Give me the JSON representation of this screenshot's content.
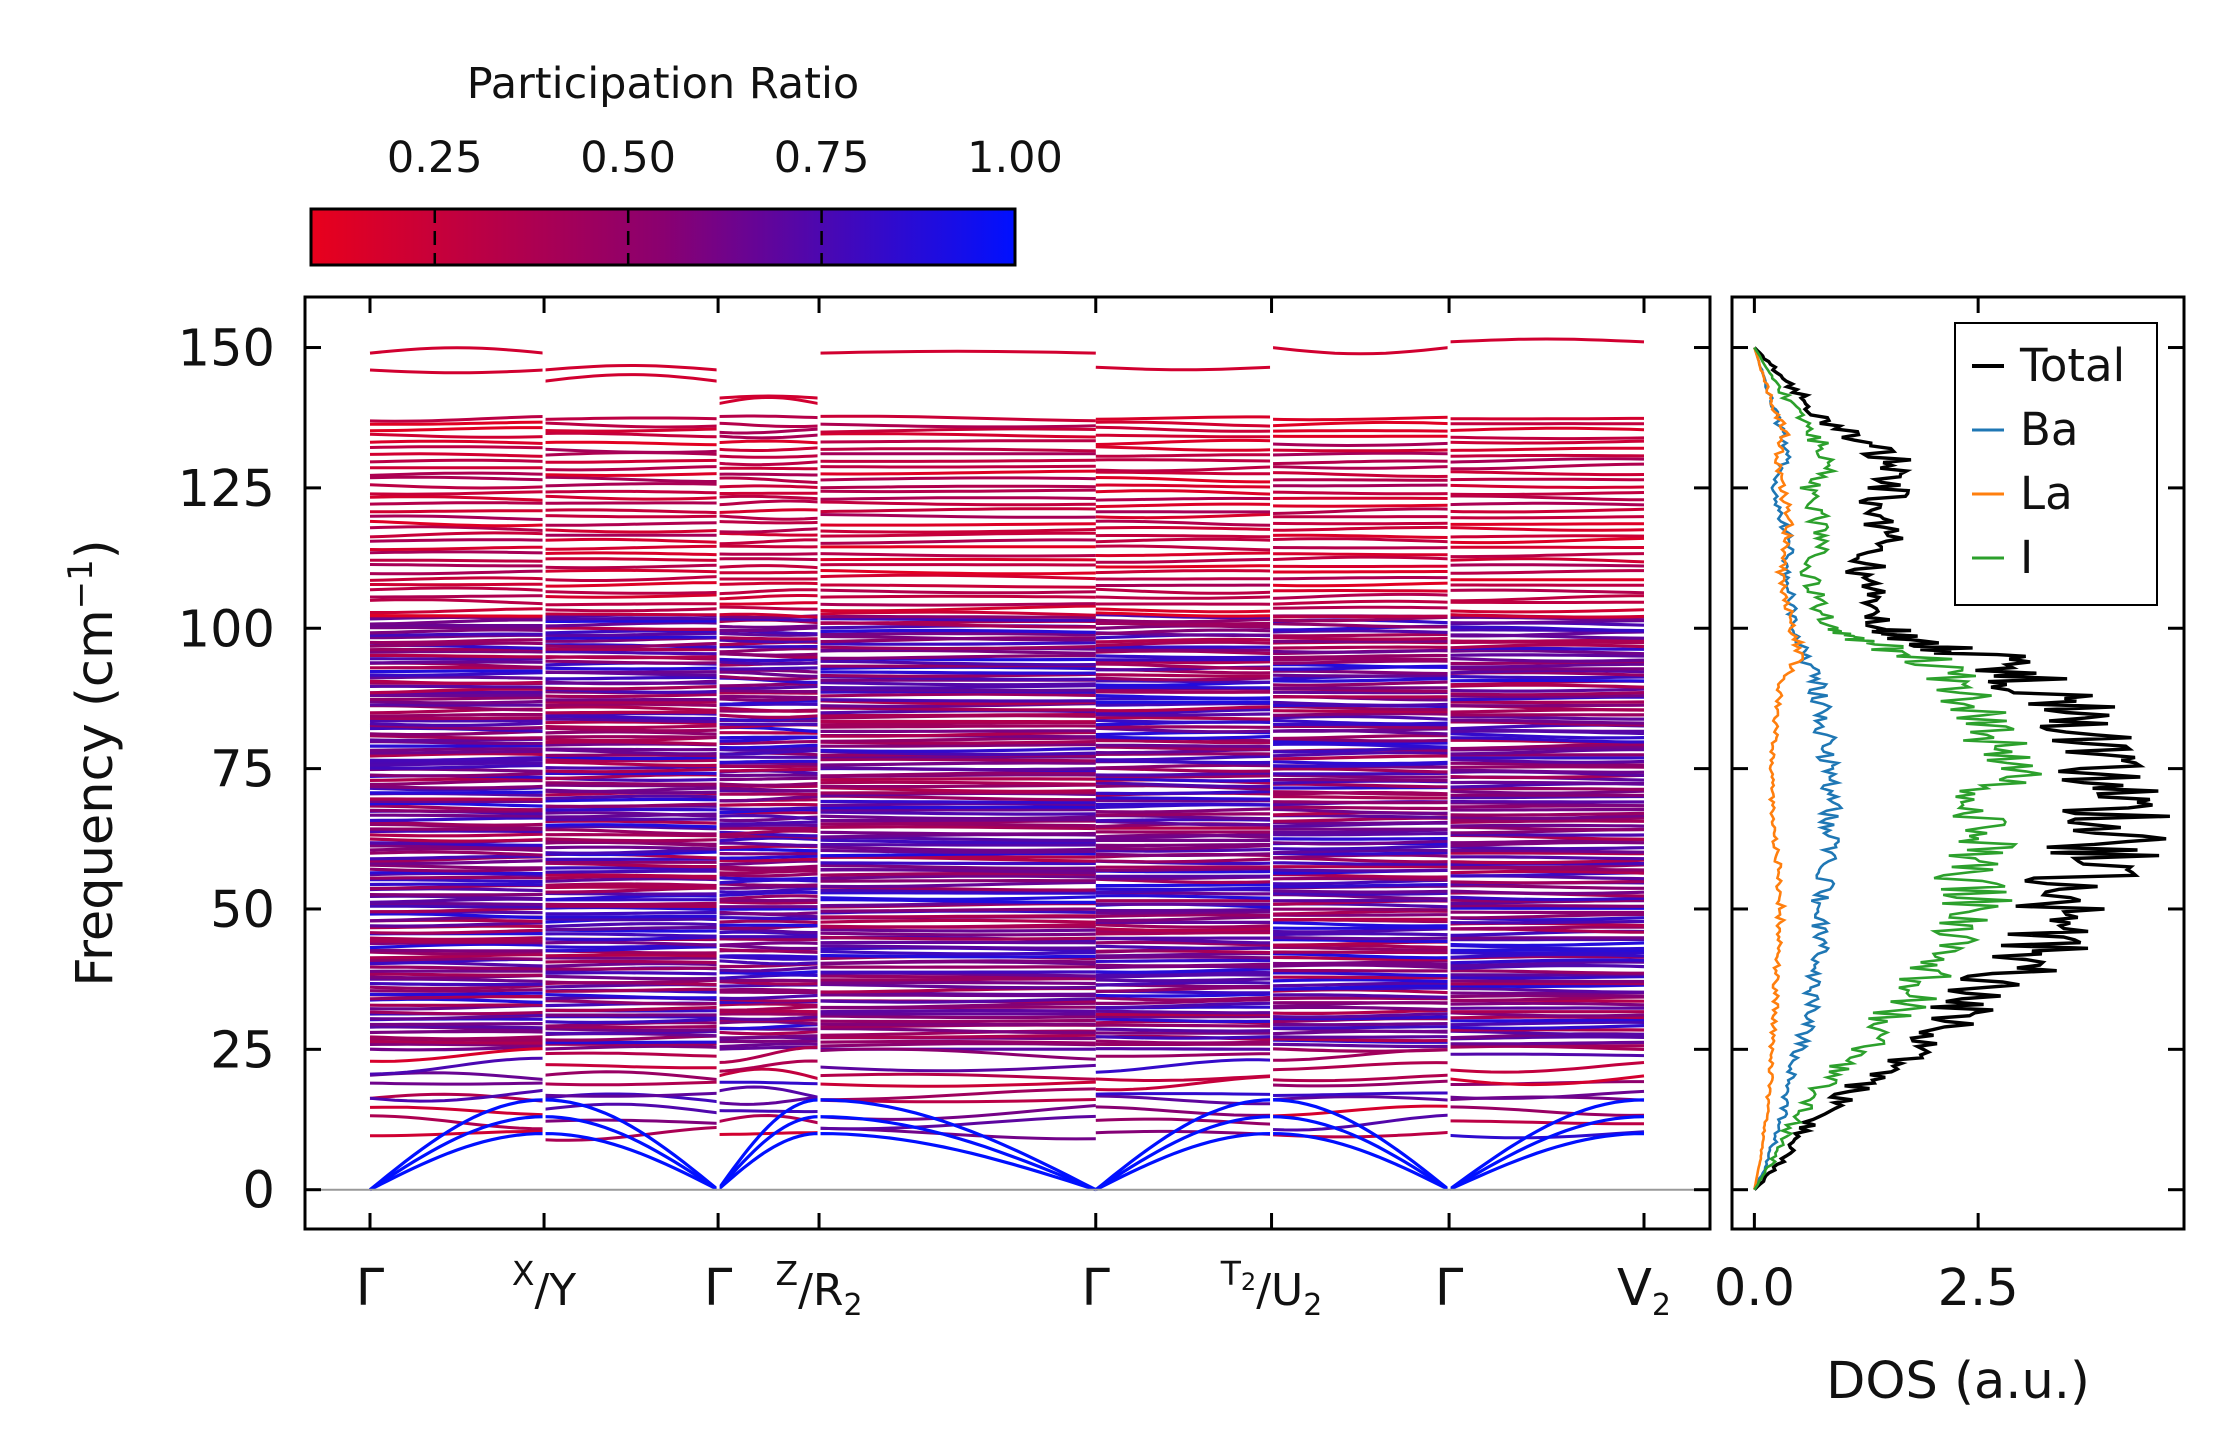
{
  "colorbar": {
    "title": "Participation Ratio",
    "ticks": [
      0.25,
      0.5,
      0.75,
      1.0
    ],
    "tick_labels": [
      "0.25",
      "0.50",
      "0.75",
      "1.00"
    ],
    "range": [
      0.09,
      1.0
    ],
    "color_low": "#e8001c",
    "color_mid": "#8a0070",
    "color_high": "#0010ff"
  },
  "chart_data": [
    {
      "type": "line",
      "name": "phonon-dispersion",
      "ylabel_main": "Frequency (cm",
      "ylabel_sup": "−1",
      "ylabel_close": ")",
      "ylim": [
        -7,
        159
      ],
      "yticks": [
        0,
        25,
        50,
        75,
        100,
        125,
        150
      ],
      "ytick_labels": [
        "0",
        "25",
        "50",
        "75",
        "100",
        "125",
        "150"
      ],
      "kpath_positions": [
        0,
        1.0,
        2.0,
        2.58,
        4.17,
        5.18,
        6.2,
        7.32
      ],
      "kpath_labels": [
        {
          "main": "Γ"
        },
        {
          "pre": "X",
          "main": "/Y"
        },
        {
          "main": "Γ"
        },
        {
          "pre": "Z",
          "main": "/R",
          "sub": "2"
        },
        {
          "main": "Γ"
        },
        {
          "pre": "T",
          "presub": "2",
          "main": "/U",
          "sub": "2"
        },
        {
          "main": "Γ"
        },
        {
          "main": "V",
          "sub": "2"
        }
      ],
      "band_breaks": [
        1.0,
        2.0,
        2.58,
        5.18,
        6.2
      ],
      "acoustic_branch_tops": [
        16,
        13,
        10
      ],
      "low_optical_bands": [
        10,
        12,
        14,
        16,
        17,
        19,
        20,
        22,
        24
      ],
      "dense_band_range": [
        25,
        102
      ],
      "upper_band_range": [
        102,
        138
      ],
      "top_bands": [
        146,
        144,
        141,
        149,
        146.5,
        150,
        151,
        149,
        146,
        140
      ]
    },
    {
      "type": "line",
      "name": "density-of-states",
      "xlabel": "DOS (a.u.)",
      "xlim": [
        -0.25,
        4.8
      ],
      "xticks": [
        0.0,
        2.5
      ],
      "xtick_labels": [
        "0.0",
        "2.5"
      ],
      "ylim": [
        -7,
        159
      ],
      "series": [
        {
          "name": "Total",
          "color": "#000000",
          "freq": [
            0,
            5,
            10,
            15,
            20,
            25,
            30,
            35,
            40,
            45,
            50,
            55,
            60,
            65,
            70,
            75,
            80,
            85,
            90,
            95,
            98,
            100,
            105,
            110,
            115,
            120,
            125,
            130,
            135,
            140,
            145,
            150
          ],
          "values": [
            0.0,
            0.3,
            0.5,
            0.9,
            1.3,
            1.8,
            2.2,
            2.5,
            3.0,
            3.3,
            3.4,
            3.6,
            3.9,
            4.1,
            4.0,
            3.8,
            3.9,
            3.6,
            3.1,
            2.6,
            1.6,
            1.5,
            1.3,
            1.2,
            1.5,
            1.3,
            1.5,
            1.6,
            1.0,
            0.6,
            0.3,
            0.0
          ]
        },
        {
          "name": "Ba",
          "color": "#1f77b4",
          "freq": [
            0,
            5,
            10,
            15,
            20,
            25,
            30,
            35,
            40,
            45,
            50,
            55,
            60,
            65,
            70,
            75,
            80,
            85,
            90,
            95,
            100,
            105,
            110,
            115,
            120,
            125,
            130,
            135,
            140,
            145,
            150
          ],
          "values": [
            0.0,
            0.15,
            0.25,
            0.35,
            0.4,
            0.5,
            0.6,
            0.65,
            0.7,
            0.75,
            0.7,
            0.8,
            0.85,
            0.8,
            0.9,
            0.85,
            0.8,
            0.75,
            0.7,
            0.55,
            0.45,
            0.4,
            0.35,
            0.4,
            0.3,
            0.2,
            0.35,
            0.3,
            0.2,
            0.1,
            0.0
          ]
        },
        {
          "name": "La",
          "color": "#ff7f0e",
          "freq": [
            0,
            5,
            10,
            15,
            20,
            25,
            30,
            35,
            40,
            45,
            50,
            55,
            60,
            65,
            70,
            75,
            80,
            85,
            90,
            95,
            100,
            105,
            110,
            115,
            120,
            125,
            130,
            135,
            140,
            145,
            150
          ],
          "values": [
            0.0,
            0.06,
            0.1,
            0.15,
            0.18,
            0.2,
            0.22,
            0.24,
            0.25,
            0.27,
            0.3,
            0.28,
            0.26,
            0.2,
            0.2,
            0.2,
            0.22,
            0.25,
            0.3,
            0.5,
            0.45,
            0.35,
            0.3,
            0.35,
            0.4,
            0.3,
            0.25,
            0.35,
            0.2,
            0.1,
            0.0
          ]
        },
        {
          "name": "I",
          "color": "#2ca02c",
          "freq": [
            0,
            5,
            10,
            15,
            20,
            25,
            30,
            35,
            40,
            45,
            50,
            55,
            60,
            65,
            70,
            75,
            80,
            85,
            90,
            95,
            98,
            100,
            105,
            110,
            115,
            120,
            125,
            130,
            135,
            140,
            145,
            150
          ],
          "values": [
            0.0,
            0.2,
            0.35,
            0.6,
            0.85,
            1.2,
            1.5,
            1.8,
            2.0,
            2.3,
            2.5,
            2.4,
            2.6,
            2.7,
            2.5,
            2.8,
            2.6,
            2.5,
            2.3,
            1.9,
            1.1,
            0.9,
            0.7,
            0.6,
            0.8,
            0.7,
            0.6,
            0.9,
            0.6,
            0.4,
            0.2,
            0.0
          ]
        }
      ]
    }
  ]
}
